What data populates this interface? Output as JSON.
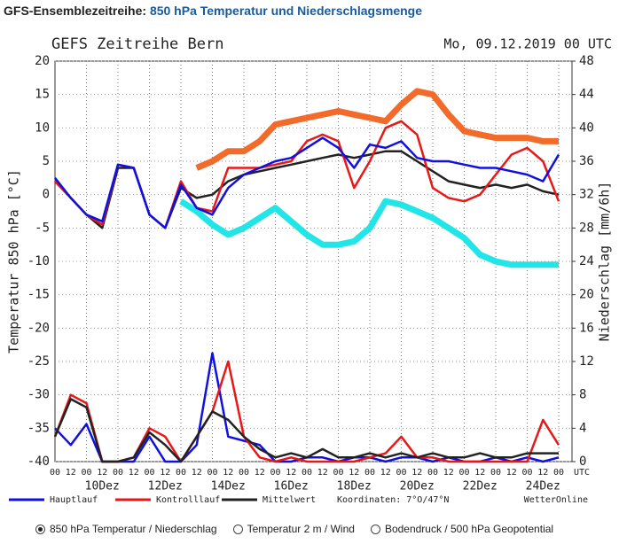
{
  "header": {
    "label": "GFS-Ensemblezeitreihe:",
    "title": "850 hPa Temperatur und Niederschlagsmenge"
  },
  "chart_data": {
    "type": "line",
    "title": "GEFS Zeitreihe Bern",
    "subtitle": "Mo, 09.12.2019 00 UTC",
    "ylabel": "Temperatur 850 hPa [°C]",
    "y2label": "Niederschlag [mm/6h]",
    "categories": [
      "00",
      "12",
      "00",
      "12",
      "00",
      "12",
      "00",
      "12",
      "00",
      "12",
      "00",
      "12",
      "00",
      "12",
      "00",
      "12",
      "00",
      "12",
      "00",
      "12",
      "00",
      "12",
      "00",
      "12",
      "00",
      "12",
      "00",
      "12",
      "00",
      "12",
      "00",
      "12",
      "00"
    ],
    "x_unit": "UTC",
    "date_labels": [
      "10Dez",
      "12Dez",
      "14Dez",
      "16Dez",
      "18Dez",
      "20Dez",
      "22Dez",
      "24Dez"
    ],
    "ylim": [
      -40,
      20
    ],
    "yticks": [
      -40,
      -35,
      -30,
      -25,
      -20,
      -15,
      -10,
      -5,
      0,
      5,
      10,
      15,
      20
    ],
    "y2lim": [
      0,
      48
    ],
    "y2ticks": [
      0,
      4,
      8,
      12,
      16,
      20,
      24,
      28,
      32,
      36,
      40,
      44,
      48
    ],
    "grid": true,
    "series": [
      {
        "name": "Hauptlauf",
        "color": "#1010e0",
        "values": [
          2.5,
          -0.5,
          -3,
          -4,
          4.5,
          4,
          -3,
          -5,
          1.5,
          -2,
          -3,
          1,
          3,
          4,
          5,
          5.5,
          7,
          8.5,
          7,
          4,
          7.5,
          7,
          8,
          5.5,
          5,
          5,
          4.5,
          4,
          4,
          3.5,
          3,
          2,
          6
        ]
      },
      {
        "name": "Kontrolllauf",
        "color": "#e81818",
        "values": [
          2,
          -0.5,
          -3,
          -4.5,
          4.5,
          4,
          -3,
          -5,
          2,
          -2,
          -2.5,
          4,
          4,
          4,
          4.5,
          5,
          8,
          9,
          8,
          1,
          5,
          10,
          11,
          9,
          1,
          -0.5,
          -1,
          0,
          3,
          6,
          7,
          5,
          -1
        ]
      },
      {
        "name": "Mittelwert",
        "color": "#222222",
        "values": [
          2,
          -0.5,
          -3,
          -5,
          4,
          4,
          -3,
          -5,
          1,
          -0.5,
          0,
          2,
          3,
          3.5,
          4,
          4.5,
          5,
          5.5,
          6,
          5.5,
          6,
          6.5,
          6.5,
          5,
          3.5,
          2,
          1.5,
          1,
          1.5,
          1,
          1.5,
          0.5,
          0
        ]
      },
      {
        "color": "#f26b2a",
        "values": [
          null,
          null,
          null,
          null,
          null,
          null,
          null,
          null,
          null,
          4,
          5,
          6.5,
          6.5,
          8,
          10.5,
          11,
          11.5,
          12,
          12.5,
          12,
          11.5,
          11,
          13.5,
          15.5,
          15,
          12,
          9.5,
          9,
          8.5,
          8.5,
          8.5,
          8,
          8
        ]
      },
      {
        "color": "#22e5e8",
        "values": [
          null,
          null,
          null,
          null,
          null,
          null,
          null,
          null,
          -1,
          -2.5,
          -4.5,
          -6,
          -5,
          -3.5,
          -2,
          -4,
          -6,
          -7.5,
          -7.5,
          -7,
          -5,
          -1,
          -1.5,
          -2.5,
          -3.5,
          -5,
          -6.5,
          -9,
          -10,
          -10.5,
          -10.5,
          -10.5,
          -10.5
        ]
      },
      {
        "color": "#1010e0",
        "axis": "y2",
        "values": [
          4,
          2,
          4.5,
          0,
          0,
          0,
          3,
          0,
          0,
          2,
          13,
          3,
          2.5,
          2,
          0,
          0,
          0.5,
          0.5,
          0,
          0.5,
          0.5,
          0,
          0.5,
          0.5,
          0,
          0.5,
          0,
          0,
          0.5,
          0,
          0.5,
          0,
          0.5
        ]
      },
      {
        "color": "#e81818",
        "axis": "y2",
        "values": [
          3,
          8,
          7,
          0,
          0,
          0.5,
          4,
          3,
          0,
          3,
          6,
          12,
          3,
          0.5,
          0,
          0.5,
          0,
          0,
          0,
          0,
          0.5,
          1,
          3,
          0.5,
          0.5,
          0,
          0,
          0,
          0,
          0,
          0,
          5,
          2
        ]
      },
      {
        "color": "#222222",
        "axis": "y2",
        "values": [
          3,
          7.5,
          6.5,
          0,
          0,
          0.5,
          3.5,
          2,
          0,
          3,
          6,
          5,
          3,
          1.5,
          0.5,
          1,
          0.5,
          1.5,
          0.5,
          0.5,
          1,
          0.5,
          1,
          0.5,
          1,
          0.5,
          0.5,
          1,
          0.5,
          0.5,
          1,
          1,
          1
        ]
      }
    ],
    "legend": {
      "note": "Koordinaten: 7°O/47°N",
      "brand": "WetterOnline"
    }
  },
  "options": [
    "850 hPa Temperatur / Niederschlag",
    "Temperatur 2 m / Wind",
    "Bodendruck / 500 hPa Geopotential"
  ]
}
